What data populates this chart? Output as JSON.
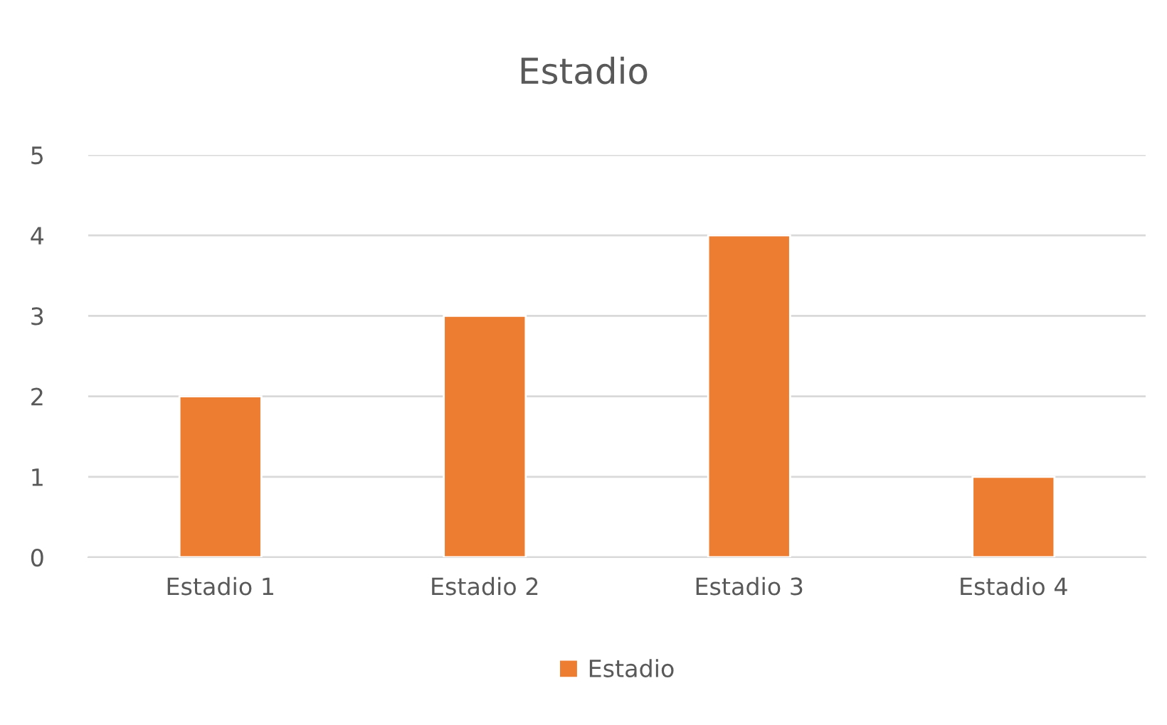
{
  "chart_data": {
    "type": "bar",
    "title": "Estadio",
    "categories": [
      "Estadio 1",
      "Estadio 2",
      "Estadio 3",
      "Estadio 4"
    ],
    "series": [
      {
        "name": "Estadio",
        "color": "#ed7d31",
        "values": [
          2,
          3,
          4,
          1
        ]
      }
    ],
    "ylim": [
      0,
      5
    ],
    "yticks": [
      0,
      1,
      2,
      3,
      4,
      5
    ],
    "grid": "y",
    "legend": "bottom"
  }
}
